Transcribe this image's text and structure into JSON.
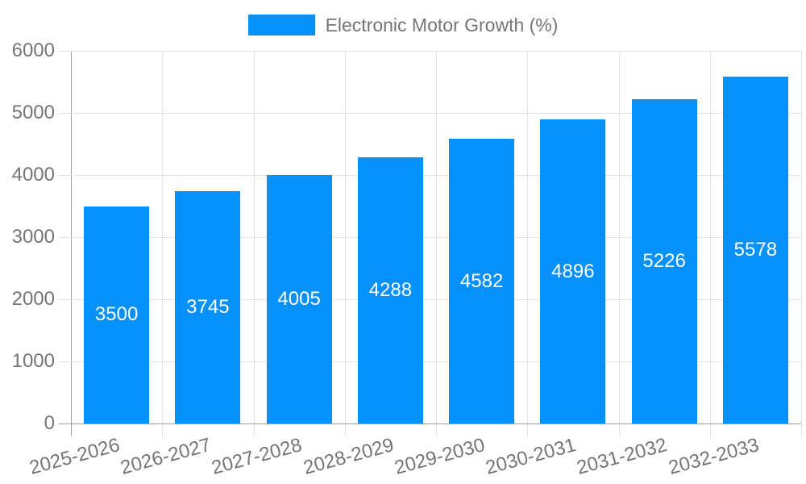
{
  "legend": {
    "label": "Electronic Motor Growth (%)"
  },
  "chart_data": {
    "type": "bar",
    "title": "",
    "series_name": "Electronic Motor Growth (%)",
    "categories": [
      "2025-2026",
      "2026-2027",
      "2027-2028",
      "2028-2029",
      "2029-2030",
      "2030-2031",
      "2031-2032",
      "2032-2033"
    ],
    "values": [
      3500,
      3745,
      4005,
      4288,
      4582,
      4896,
      5226,
      5578
    ],
    "value_labels": [
      "3500",
      "3745",
      "4005",
      "4288",
      "4582",
      "4896",
      "5226",
      "5578"
    ],
    "xlabel": "",
    "ylabel": "",
    "ylim": [
      0,
      6000
    ],
    "yticks": [
      0,
      1000,
      2000,
      3000,
      4000,
      5000,
      6000
    ],
    "ytick_labels": [
      "0",
      "1000",
      "2000",
      "3000",
      "4000",
      "5000",
      "6000"
    ],
    "grid": true,
    "legend_position": "top-center",
    "x_label_rotation_deg": -15,
    "colors": {
      "bar": "#0590fa",
      "value_label": "#ffffff",
      "axis_text": "#757575",
      "gridline": "#e4e4e4",
      "axis_line": "#9e9e9e",
      "background": "#ffffff"
    }
  }
}
